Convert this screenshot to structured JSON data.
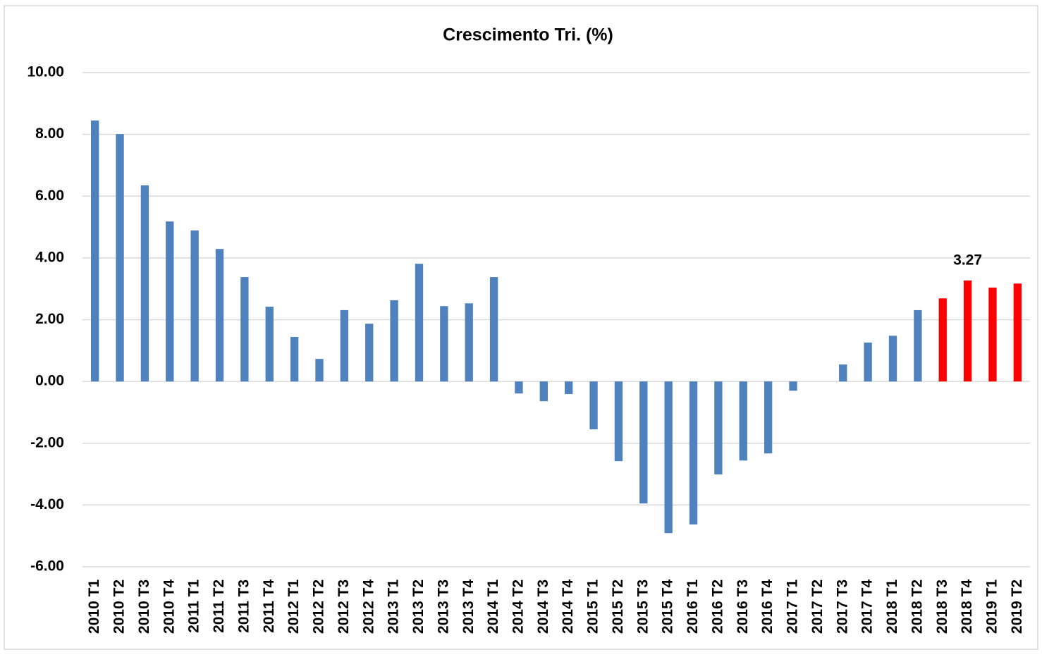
{
  "chart_data": {
    "type": "bar",
    "title": "Crescimento Tri. (%)",
    "categories": [
      "2010 T1",
      "2010 T2",
      "2010 T3",
      "2010 T4",
      "2011 T1",
      "2011 T2",
      "2011 T3",
      "2011 T4",
      "2012 T1",
      "2012 T2",
      "2012 T3",
      "2012 T4",
      "2013 T1",
      "2013 T2",
      "2013 T3",
      "2013 T4",
      "2014 T1",
      "2014 T2",
      "2014 T3",
      "2014 T4",
      "2015 T1",
      "2015 T2",
      "2015 T3",
      "2015 T4",
      "2016 T1",
      "2016 T2",
      "2016 T3",
      "2016 T4",
      "2017 T1",
      "2017 T2",
      "2017 T3",
      "2017 T4",
      "2018 T1",
      "2018 T2",
      "2018 T3",
      "2018 T4",
      "2019 T1",
      "2019 T2"
    ],
    "values": [
      8.45,
      8.01,
      6.35,
      5.18,
      4.89,
      4.29,
      3.38,
      2.42,
      1.44,
      0.73,
      2.31,
      1.87,
      2.63,
      3.81,
      2.44,
      2.53,
      3.38,
      -0.39,
      -0.64,
      -0.41,
      -1.55,
      -2.58,
      -3.95,
      -4.91,
      -4.63,
      -3.01,
      -2.56,
      -2.33,
      -0.3,
      0,
      0.55,
      1.26,
      1.48,
      2.31,
      2.69,
      3.27,
      3.04,
      3.17
    ],
    "value_labels": [
      null,
      null,
      null,
      null,
      null,
      null,
      null,
      null,
      null,
      null,
      null,
      null,
      null,
      null,
      null,
      null,
      null,
      null,
      null,
      null,
      null,
      null,
      null,
      null,
      null,
      null,
      null,
      null,
      null,
      null,
      null,
      null,
      null,
      null,
      null,
      "3.27",
      null,
      null
    ],
    "colors": [
      "#4f81bd",
      "#4f81bd",
      "#4f81bd",
      "#4f81bd",
      "#4f81bd",
      "#4f81bd",
      "#4f81bd",
      "#4f81bd",
      "#4f81bd",
      "#4f81bd",
      "#4f81bd",
      "#4f81bd",
      "#4f81bd",
      "#4f81bd",
      "#4f81bd",
      "#4f81bd",
      "#4f81bd",
      "#4f81bd",
      "#4f81bd",
      "#4f81bd",
      "#4f81bd",
      "#4f81bd",
      "#4f81bd",
      "#4f81bd",
      "#4f81bd",
      "#4f81bd",
      "#4f81bd",
      "#4f81bd",
      "#4f81bd",
      "#4f81bd",
      "#4f81bd",
      "#4f81bd",
      "#4f81bd",
      "#4f81bd",
      "#ff0000",
      "#ff0000",
      "#ff0000",
      "#ff0000"
    ],
    "ylim": [
      -6,
      10
    ],
    "yticks": [
      {
        "value": -6,
        "label": "-6.00"
      },
      {
        "value": -4,
        "label": "-4.00"
      },
      {
        "value": -2,
        "label": "-2.00"
      },
      {
        "value": 0,
        "label": "0.00"
      },
      {
        "value": 2,
        "label": "2.00"
      },
      {
        "value": 4,
        "label": "4.00"
      },
      {
        "value": 6,
        "label": "6.00"
      },
      {
        "value": 8,
        "label": "8.00"
      },
      {
        "value": 10,
        "label": "10.00"
      }
    ],
    "grid": true
  }
}
